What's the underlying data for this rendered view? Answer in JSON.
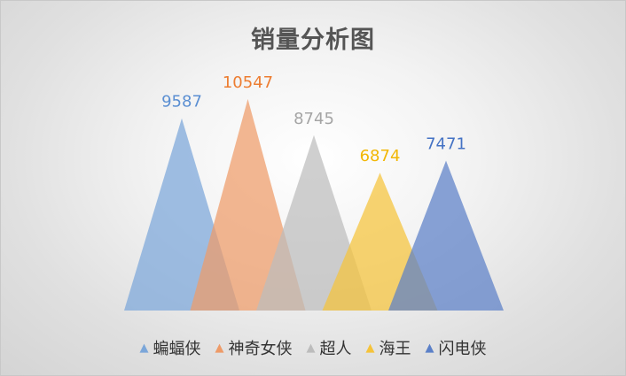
{
  "chart_data": {
    "type": "bar",
    "style": "pointed-triangle",
    "title": "销量分析图",
    "categories": [
      "蝙蝠侠",
      "神奇女侠",
      "超人",
      "海王",
      "闪电侠"
    ],
    "values": [
      9587,
      10547,
      8745,
      6874,
      7471
    ],
    "colors": [
      "#7ba6d9",
      "#ee9b68",
      "#bcbcbc",
      "#f5c33a",
      "#5b80c8"
    ],
    "label_colors": [
      "#5b8fd2",
      "#ed7d31",
      "#a5a5a5",
      "#f2b705",
      "#4472c4"
    ],
    "ylim": [
      0,
      12000
    ],
    "grid": false,
    "legend_position": "bottom",
    "legend_marker": "▲"
  }
}
